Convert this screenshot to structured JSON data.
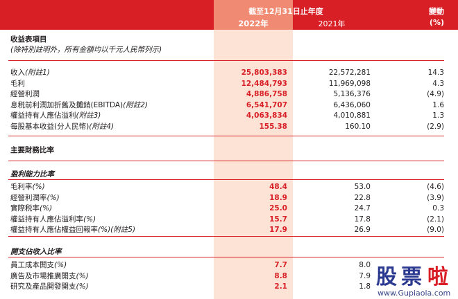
{
  "header": {
    "period": "截至12月31日止年度",
    "year_current": "2022年",
    "year_prior": "2021年",
    "change_label": "變動",
    "change_unit": "(%)"
  },
  "income": {
    "title": "收益表項目",
    "note": "(除特別註明外，所有金額均以千元人民幣列示)",
    "rows": [
      {
        "label": "收入",
        "note": "(附註1)",
        "v2022": "25,803,383",
        "v2021": "22,572,281",
        "change": "14.3"
      },
      {
        "label": "毛利",
        "note": "",
        "v2022": "12,484,793",
        "v2021": "11,969,098",
        "change": "4.3"
      },
      {
        "label": "經營利潤",
        "note": "",
        "v2022": "4,886,758",
        "v2021": "5,136,376",
        "change": "(4.9)"
      },
      {
        "label": "息税前利潤加折舊及攤銷(EBITDA)",
        "note": "(附註2)",
        "v2022": "6,541,707",
        "v2021": "6,436,060",
        "change": "1.6"
      },
      {
        "label": "權益持有人應佔溢利",
        "note": "(附註3)",
        "v2022": "4,063,834",
        "v2021": "4,010,881",
        "change": "1.3"
      },
      {
        "label": "每股基本收益(分人民幣)",
        "note": "(附註4)",
        "v2022": "155.38",
        "v2021": "160.10",
        "change": "(2.9)"
      }
    ]
  },
  "ratios": {
    "title": "主要財務比率",
    "profitability": {
      "title": "盈利能力比率",
      "rows": [
        {
          "label": "毛利率",
          "note": "(%)",
          "v2022": "48.4",
          "v2021": "53.0",
          "change": "(4.6)"
        },
        {
          "label": "經營利潤率",
          "note": "(%)",
          "v2022": "18.9",
          "v2021": "22.8",
          "change": "(3.9)"
        },
        {
          "label": "實際税率",
          "note": "(%)",
          "v2022": "25.0",
          "v2021": "24.7",
          "change": "0.3"
        },
        {
          "label": "權益持有人應佔溢利率",
          "note": "(%)",
          "v2022": "15.7",
          "v2021": "17.8",
          "change": "(2.1)"
        },
        {
          "label": "權益持有人應佔權益回報率",
          "note": "(%)(附註5)",
          "v2022": "17.9",
          "v2021": "26.9",
          "change": "(9.0)"
        }
      ]
    },
    "expense": {
      "title": "開支佔收入比率",
      "rows": [
        {
          "label": "員工成本開支",
          "note": "(%)",
          "v2022": "7.7",
          "v2021": "8.0",
          "change": ""
        },
        {
          "label": "廣告及市場推廣開支",
          "note": "(%)",
          "v2022": "8.8",
          "v2021": "7.9",
          "change": ""
        },
        {
          "label": "研究及產品開發開支",
          "note": "(%)",
          "v2022": "2.1",
          "v2021": "1.8",
          "change": ""
        }
      ]
    }
  },
  "watermark": {
    "chars": [
      "股",
      "票",
      "啦"
    ],
    "url": "www.Gupiaola.com",
    "colors": [
      "#2b3990",
      "#2b3990",
      "#d81f26"
    ]
  },
  "colors": {
    "header_red": "#d81f26",
    "highlight_column": "#fde3d6",
    "highlight_header": "#f08a72"
  }
}
